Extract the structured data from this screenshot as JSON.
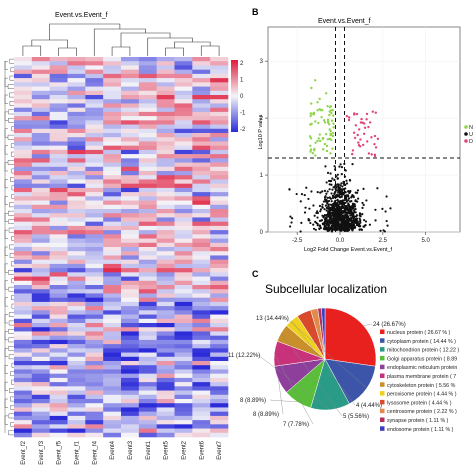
{
  "colors": {
    "heat_low": "#2b2bd9",
    "heat_mid": "#f4f4f8",
    "heat_high": "#e01a3c",
    "volcano_ns": "#111111",
    "volcano_down": "#8fd44a",
    "volcano_up": "#e0457a"
  },
  "chart_data": [
    {
      "type": "heatmap",
      "panel_label": "",
      "title": "Event.vs.Event_f",
      "columns": [
        "Event_f2",
        "Event_f3",
        "Event_f5",
        "Event_f1",
        "Event_f4",
        "Event4",
        "Event3",
        "Event1",
        "Event5",
        "Event2",
        "Event6",
        "Event7"
      ],
      "column_groups": [
        "Event_f",
        "Event_f",
        "Event_f",
        "Event_f",
        "Event_f",
        "Event",
        "Event",
        "Event",
        "Event",
        "Event",
        "Event",
        "Event"
      ],
      "legend_ticks": [
        2,
        1,
        0,
        -1,
        -2
      ],
      "value_range": [
        -2,
        2
      ],
      "row_count": 90,
      "dendrogram": "top-and-left"
    },
    {
      "type": "scatter",
      "panel_label": "B",
      "title": "Event.vs.Event_f",
      "xlabel": "Log2 Fold Change Event.vs.Event_f",
      "ylabel": "Log10 P value",
      "xlim": [
        -4.2,
        7
      ],
      "ylim": [
        0,
        3.6
      ],
      "xticks": [
        -2.5,
        0.0,
        2.5,
        5.0
      ],
      "yticks": [
        0,
        1,
        2,
        3
      ],
      "thresholds": {
        "x": [
          -0.263,
          0.263
        ],
        "y": 1.3
      },
      "legend_fragments": [
        "N",
        "U",
        "D"
      ],
      "categories": [
        "not significant",
        "down-regulated",
        "up-regulated"
      ]
    },
    {
      "type": "pie",
      "panel_label": "C",
      "title": "Subcellular localization",
      "slices": [
        {
          "name": "nucleus protein",
          "count": 24,
          "percent": 26.67,
          "label": "24 (26.67%)",
          "legend": "nucleus protein  ( 26.67 % )",
          "color": "#e8201e"
        },
        {
          "name": "cytoplasm protein",
          "count": 13,
          "percent": 14.44,
          "label": "13 (14.44%)",
          "legend": "cytoplasm protein  ( 14.44 % )",
          "color": "#3c55a8"
        },
        {
          "name": "mitochondrion protein",
          "count": 11,
          "percent": 12.22,
          "label": "11 (12.22%)",
          "legend": "mitochondrion protein  ( 12.22 )",
          "color": "#2a9b86"
        },
        {
          "name": "Golgi apparatus protein",
          "count": 8,
          "percent": 8.89,
          "label": "8 (8.89%)",
          "legend": "Golgi apparatus protein  ( 8.89",
          "color": "#5bbe3a"
        },
        {
          "name": "endoplasmic reticulum protein",
          "count": 8,
          "percent": 8.89,
          "label": "8 (8.89%)",
          "legend": "endoplasmic reticulum protein",
          "color": "#8e3f9c"
        },
        {
          "name": "plasma membrane protein",
          "count": 7,
          "percent": 7.78,
          "label": "7 (7.78%)",
          "legend": "plasma membrane protein  ( 7",
          "color": "#c8327a"
        },
        {
          "name": "cytoskeleton protein",
          "count": 5,
          "percent": 5.56,
          "label": "5 (5.56%)",
          "legend": "cytoskeleton protein  ( 5.56 %",
          "color": "#c88f2a"
        },
        {
          "name": "peroxisome protein",
          "count": 4,
          "percent": 4.44,
          "label": "4 (4.44%)",
          "legend": "peroxisome protein  ( 4.44 % )",
          "color": "#f0d21e"
        },
        {
          "name": "lysosome protein",
          "count": 4,
          "percent": 4.44,
          "label": "",
          "legend": "lysosome protein  ( 4.44 % )",
          "color": "#d84a2c"
        },
        {
          "name": "centrosome protein",
          "count": 2,
          "percent": 2.22,
          "label": "",
          "legend": "centrosome protein  ( 2.22 % )",
          "color": "#e08a4c"
        },
        {
          "name": "synapse protein",
          "count": 1,
          "percent": 1.11,
          "label": "",
          "legend": "synapse protein  ( 1.11 % )",
          "color": "#b0305a"
        },
        {
          "name": "endosome protein",
          "count": 1,
          "percent": 1.11,
          "label": "",
          "legend": "endosome protein  ( 1.11 % )",
          "color": "#3c3cc0"
        }
      ]
    }
  ]
}
